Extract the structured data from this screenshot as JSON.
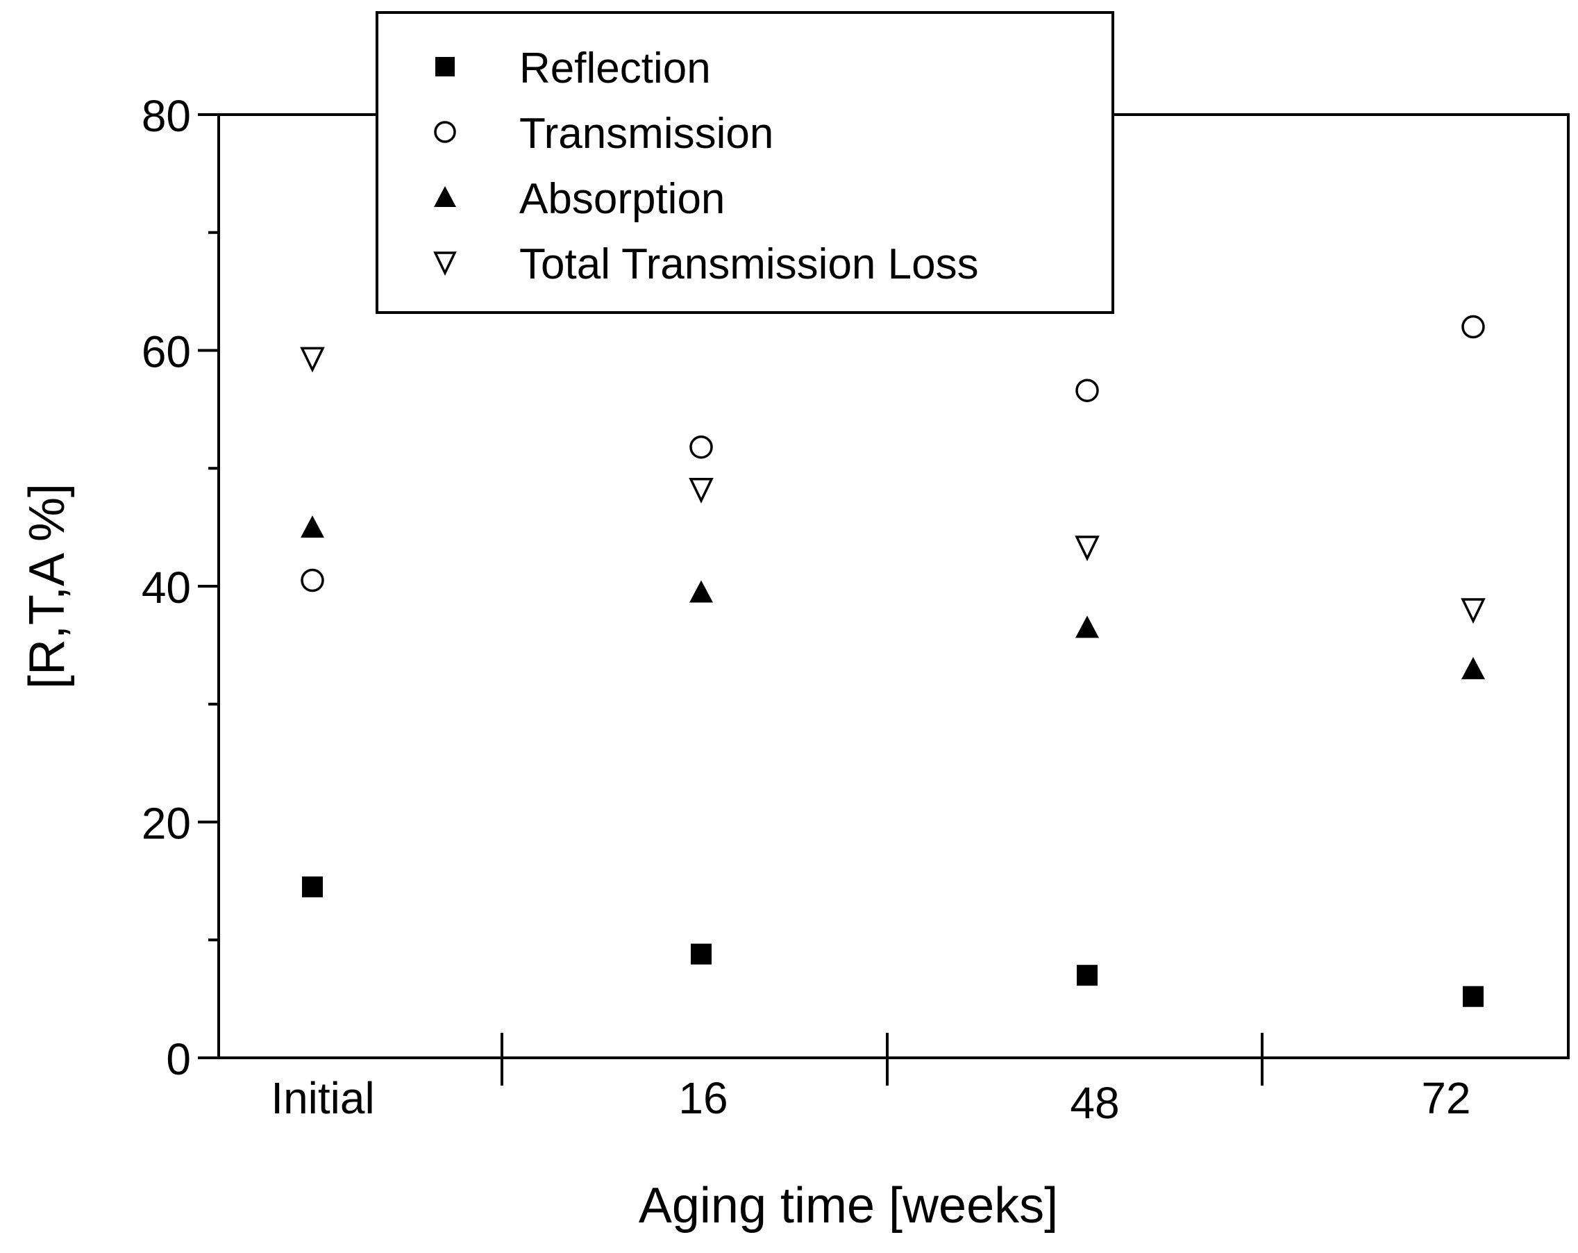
{
  "chart_data": {
    "type": "scatter",
    "title": "",
    "xlabel": "Aging time [weeks]",
    "ylabel": "[R,T,A %]",
    "categories": [
      "Initial",
      "16",
      "48",
      "72"
    ],
    "ylim": [
      0,
      80
    ],
    "y_ticks": [
      "0",
      "20",
      "40",
      "60",
      "80"
    ],
    "grid": false,
    "legend_position": "top-center",
    "series": [
      {
        "name": "Reflection",
        "marker": "filled-square",
        "values": [
          14.5,
          8.8,
          7.0,
          5.2
        ]
      },
      {
        "name": "Transmission",
        "marker": "open-circle",
        "values": [
          40.5,
          51.8,
          56.6,
          62.0
        ]
      },
      {
        "name": "Absorption",
        "marker": "filled-triangle-up",
        "values": [
          45.0,
          39.5,
          36.5,
          33.0
        ]
      },
      {
        "name": "Total Transmission Loss",
        "marker": "open-triangle-down",
        "values": [
          59.3,
          48.2,
          43.3,
          38.0
        ]
      }
    ],
    "colors": {
      "ink": "#000000",
      "background": "#ffffff"
    }
  }
}
